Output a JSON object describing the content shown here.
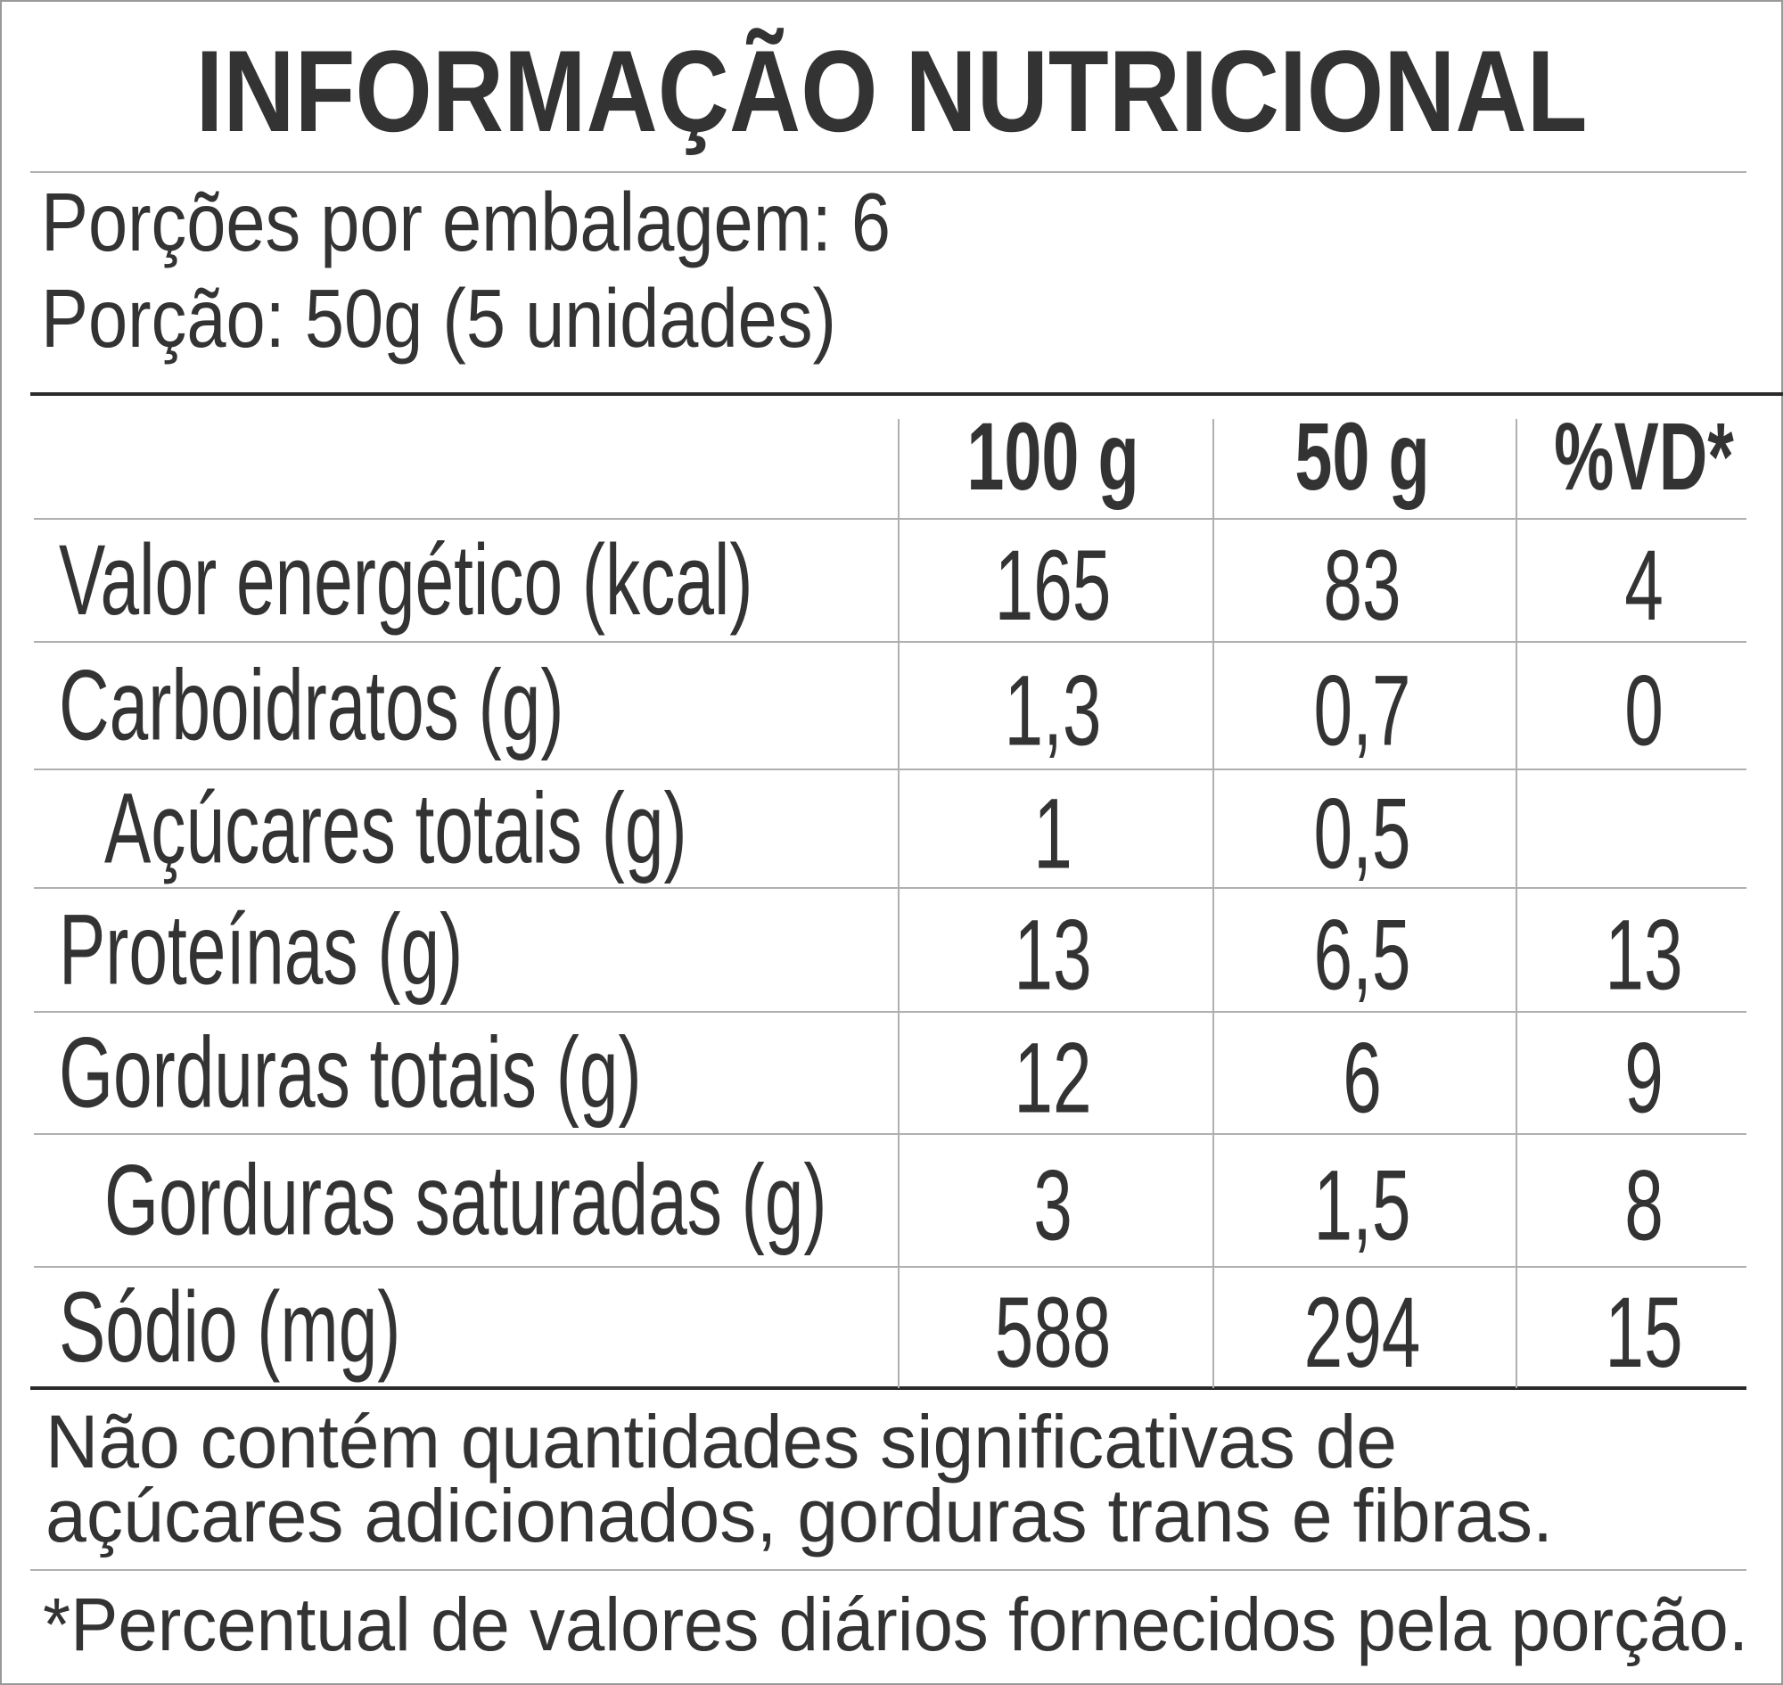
{
  "header": {
    "title": "INFORMAÇÃO NUTRICIONAL",
    "servings_per_package": "Porções por embalagem: 6",
    "serving_size": "Porção: 50g (5 unidades)"
  },
  "table": {
    "columns": [
      "100 g",
      "50 g",
      "%VD*"
    ],
    "rows": [
      {
        "label": "Valor energético (kcal)",
        "values": [
          "165",
          "83",
          "4"
        ]
      },
      {
        "label": "Carboidratos (g)",
        "values": [
          "1,3",
          "0,7",
          "0"
        ]
      },
      {
        "label": "Açúcares totais (g)",
        "values": [
          "1",
          "0,5",
          null
        ]
      },
      {
        "label": "Proteínas (g)",
        "values": [
          "13",
          "6,5",
          "13"
        ]
      },
      {
        "label": "Gorduras totais (g)",
        "values": [
          "12",
          "6",
          "9"
        ]
      },
      {
        "label": "Gorduras saturadas (g)",
        "values": [
          "3",
          "1,5",
          "8"
        ]
      },
      {
        "label": "Sódio (mg)",
        "values": [
          "588",
          "294",
          "15"
        ]
      }
    ]
  },
  "notes": [
    "Não contém quantidades significativas de",
    "açúcares adicionados, gorduras trans e fibras."
  ],
  "footnote": "*Percentual de valores diários fornecidos pela porção."
}
